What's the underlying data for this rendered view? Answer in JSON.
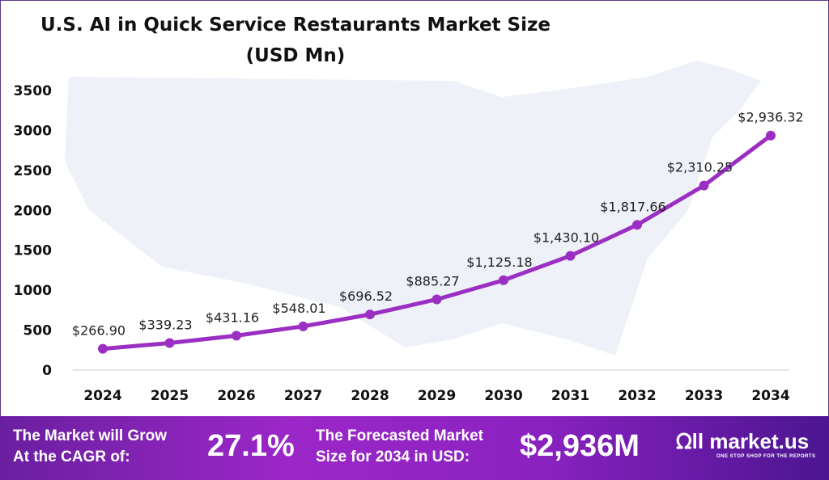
{
  "chart_data": {
    "type": "line",
    "title": "U.S. AI in Quick Service Restaurants Market Size",
    "subtitle": "(USD Mn)",
    "categories": [
      "2024",
      "2025",
      "2026",
      "2027",
      "2028",
      "2029",
      "2030",
      "2031",
      "2032",
      "2033",
      "2034"
    ],
    "values": [
      266.9,
      339.23,
      431.16,
      548.01,
      696.52,
      885.27,
      1125.18,
      1430.1,
      1817.66,
      2310.25,
      2936.32
    ],
    "data_labels": [
      "$266.90",
      "$339.23",
      "$431.16",
      "$548.01",
      "$696.52",
      "$885.27",
      "$1,125.18",
      "$1,430.10",
      "$1,817.66",
      "$2,310.25",
      "$2,936.32"
    ],
    "yticks": [
      "0",
      "500",
      "1000",
      "1500",
      "2000",
      "2500",
      "3000",
      "3500"
    ],
    "ylim": [
      0,
      3500
    ],
    "grid": false,
    "line_color": "#9b2fc4"
  },
  "banner": {
    "cagr_label_1": "The Market will Grow",
    "cagr_label_2": "At the CAGR of:",
    "cagr_value": "27.1%",
    "forecast_label_1": "The Forecasted Market",
    "forecast_label_2": "Size for 2034 in USD:",
    "forecast_value": "$2,936M",
    "logo_text": "market.us",
    "logo_tagline": "ONE STOP SHOP FOR THE REPORTS"
  }
}
